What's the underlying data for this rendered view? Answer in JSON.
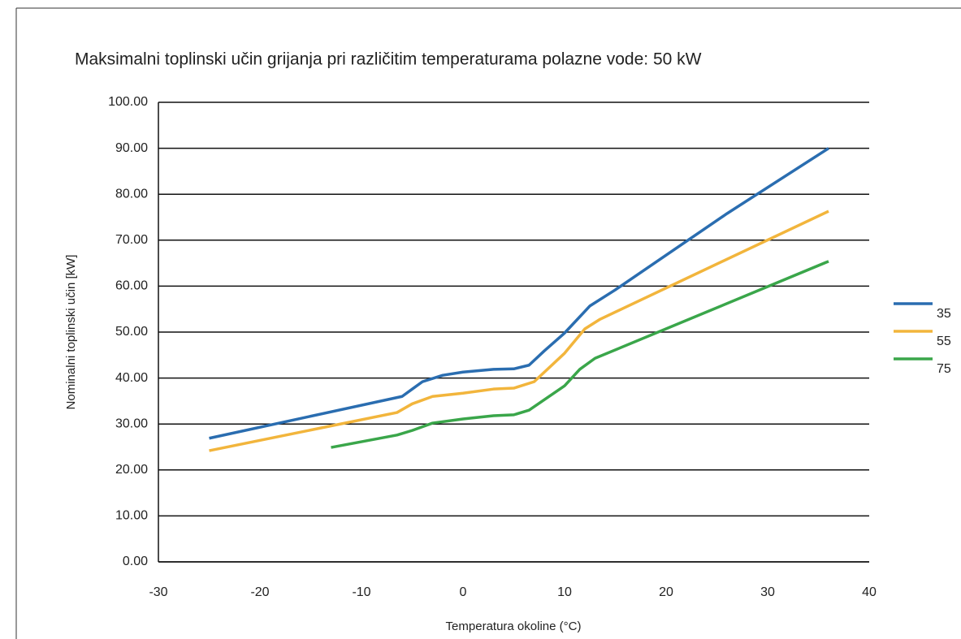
{
  "chart_data": {
    "type": "line",
    "title": "Maksimalni toplinski učin grijanja pri različitim temperaturama polazne vode: 50 kW",
    "x_label": "Temperatura okoline (°C)",
    "y_label": "Nominalni toplinski učin [kW]",
    "xlim": [
      -30,
      40
    ],
    "xticks": [
      -30,
      -20,
      -10,
      0,
      10,
      20,
      30,
      40
    ],
    "ylim": [
      0,
      100
    ],
    "yticks": [
      {
        "value": 0,
        "label": "0.00"
      },
      {
        "value": 10,
        "label": "10.00"
      },
      {
        "value": 20,
        "label": "20.00"
      },
      {
        "value": 30,
        "label": "30.00"
      },
      {
        "value": 40,
        "label": "40.00"
      },
      {
        "value": 50,
        "label": "50.00"
      },
      {
        "value": 60,
        "label": "60.00"
      },
      {
        "value": 70,
        "label": "70.00"
      },
      {
        "value": 80,
        "label": "80.00"
      },
      {
        "value": 90,
        "label": "90.00"
      },
      {
        "value": 100,
        "label": "100.00"
      }
    ],
    "grid": true,
    "legend": "right",
    "series": [
      {
        "name": "35",
        "color": "#2a6db0",
        "x": [
          -25,
          -6,
          -4,
          -2,
          0,
          3,
          5,
          6.5,
          8,
          10,
          12.5,
          15,
          26,
          36
        ],
        "values": [
          26.9,
          36.0,
          39.2,
          40.6,
          41.3,
          41.9,
          42.0,
          42.8,
          45.9,
          49.8,
          55.7,
          59.2,
          75.8,
          90.0
        ]
      },
      {
        "name": "55",
        "color": "#f2b53c",
        "x": [
          -25,
          -6.5,
          -5,
          -3,
          0,
          3,
          5,
          7,
          10,
          12,
          13.5,
          36
        ],
        "values": [
          24.2,
          32.5,
          34.4,
          36.0,
          36.7,
          37.6,
          37.8,
          39.2,
          45.4,
          50.7,
          52.8,
          76.3
        ]
      },
      {
        "name": "75",
        "color": "#3aa64a",
        "x": [
          -13,
          -6.5,
          -5,
          -3,
          0,
          3,
          5,
          6.5,
          10,
          11.5,
          13,
          36
        ],
        "values": [
          24.9,
          27.6,
          28.6,
          30.2,
          31.1,
          31.8,
          32.0,
          33.0,
          38.3,
          41.9,
          44.3,
          65.4
        ]
      }
    ]
  }
}
